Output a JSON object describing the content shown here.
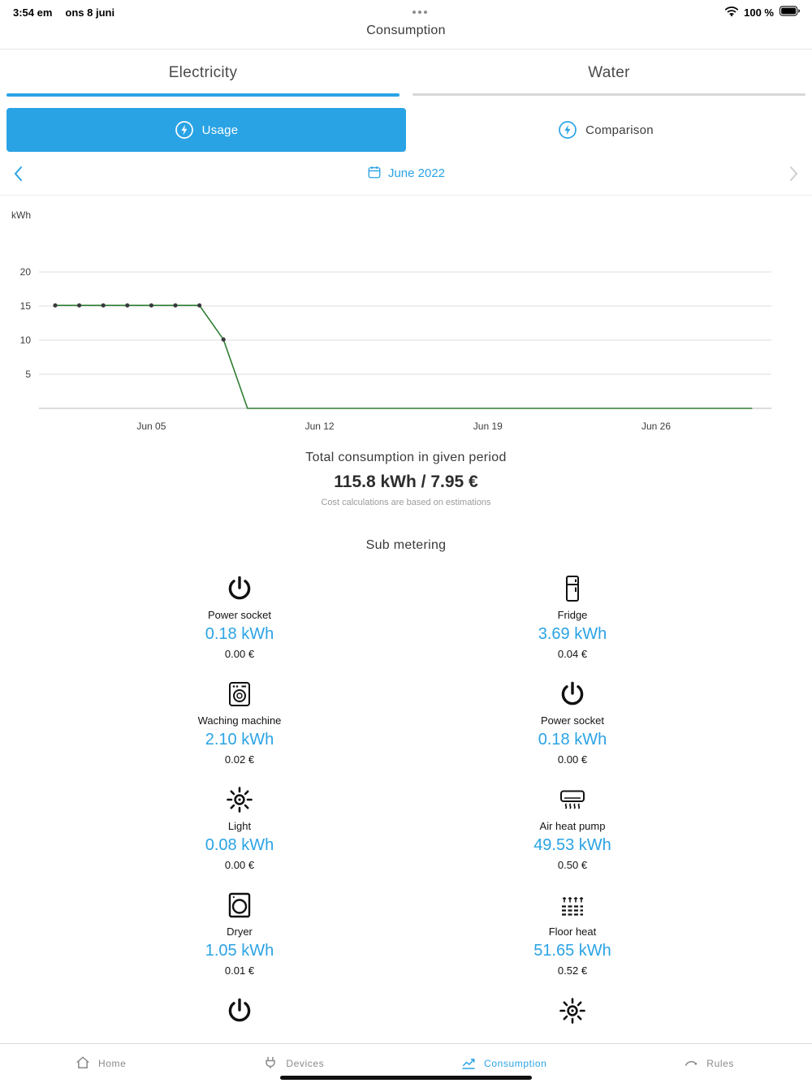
{
  "colors": {
    "accent": "#2aa3e5",
    "nav_inactive": "#8a8a8a"
  },
  "status_bar": {
    "time": "3:54 em",
    "date": "ons 8 juni",
    "battery_label": "100 %"
  },
  "header": {
    "title": "Consumption"
  },
  "tabs": {
    "electricity": "Electricity",
    "water": "Water"
  },
  "subtabs": {
    "usage": "Usage",
    "comparison": "Comparison"
  },
  "date_nav": {
    "period": "June 2022"
  },
  "chart_data": {
    "type": "line",
    "ylabel": "kWh",
    "line_color": "#2e7d32",
    "ylim": [
      0,
      22
    ],
    "y_ticks": [
      5,
      10,
      15,
      20
    ],
    "days": [
      1,
      2,
      3,
      4,
      5,
      6,
      7,
      8,
      9,
      10,
      11,
      12,
      13,
      14,
      15,
      16,
      17,
      18,
      19,
      20,
      21,
      22,
      23,
      24,
      25,
      26,
      27,
      28,
      29,
      30
    ],
    "values": [
      15.1,
      15.1,
      15.1,
      15.1,
      15.1,
      15.1,
      15.1,
      10.1,
      0,
      0,
      0,
      0,
      0,
      0,
      0,
      0,
      0,
      0,
      0,
      0,
      0,
      0,
      0,
      0,
      0,
      0,
      0,
      0,
      0,
      0
    ],
    "x_ticks": [
      {
        "day": 5,
        "label": "Jun 05"
      },
      {
        "day": 12,
        "label": "Jun 12"
      },
      {
        "day": 19,
        "label": "Jun 19"
      },
      {
        "day": 26,
        "label": "Jun 26"
      }
    ],
    "grid": true,
    "legend": "none"
  },
  "summary": {
    "title": "Total consumption in given period",
    "value": "115.8 kWh / 7.95 €",
    "note": "Cost calculations are based on estimations"
  },
  "sub_metering": {
    "title": "Sub metering",
    "items": [
      {
        "icon": "power-icon",
        "name": "Power socket",
        "value": "0.18 kWh",
        "cost": "0.00 €"
      },
      {
        "icon": "fridge-icon",
        "name": "Fridge",
        "value": "3.69 kWh",
        "cost": "0.04 €"
      },
      {
        "icon": "washing-machine-icon",
        "name": "Waching machine",
        "value": "2.10 kWh",
        "cost": "0.02 €"
      },
      {
        "icon": "power-icon",
        "name": "Power socket",
        "value": "0.18 kWh",
        "cost": "0.00 €"
      },
      {
        "icon": "light-icon",
        "name": "Light",
        "value": "0.08 kWh",
        "cost": "0.00 €"
      },
      {
        "icon": "air-heat-pump-icon",
        "name": "Air heat pump",
        "value": "49.53 kWh",
        "cost": "0.50 €"
      },
      {
        "icon": "dryer-icon",
        "name": "Dryer",
        "value": "1.05 kWh",
        "cost": "0.01 €"
      },
      {
        "icon": "floor-heat-icon",
        "name": "Floor heat",
        "value": "51.65 kWh",
        "cost": "0.52 €"
      },
      {
        "icon": "power-icon",
        "name": "",
        "value": "",
        "cost": ""
      },
      {
        "icon": "light-icon",
        "name": "",
        "value": "",
        "cost": ""
      }
    ]
  },
  "bottom_nav": {
    "items": [
      {
        "id": "home",
        "icon": "home-icon",
        "label": "Home",
        "active": false
      },
      {
        "id": "devices",
        "icon": "devices-icon",
        "label": "Devices",
        "active": false
      },
      {
        "id": "consumption",
        "icon": "consumption-icon",
        "label": "Consumption",
        "active": true
      },
      {
        "id": "rules",
        "icon": "rules-icon",
        "label": "Rules",
        "active": false
      }
    ]
  }
}
